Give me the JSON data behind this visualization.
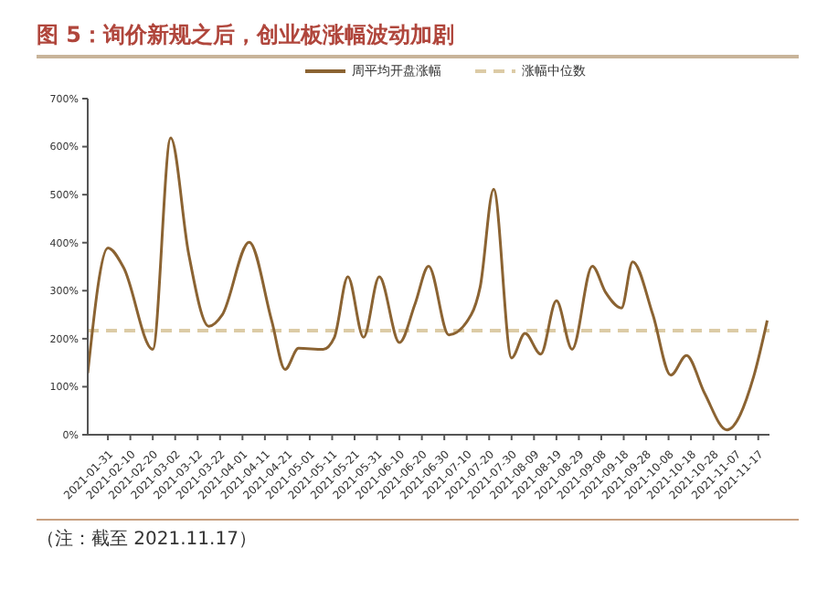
{
  "chart_data": {
    "type": "line",
    "title": "图 5：询价新规之后，创业板涨幅波动加剧",
    "annotations": [
      "（注：截至 2021.11.17）"
    ],
    "xlim": [
      "2021-01-22",
      "2021-11-22"
    ],
    "xticks": [
      "2021-01-31",
      "2021-02-10",
      "2021-02-20",
      "2021-03-02",
      "2021-03-12",
      "2021-03-22",
      "2021-04-01",
      "2021-04-11",
      "2021-04-21",
      "2021-05-01",
      "2021-05-11",
      "2021-05-21",
      "2021-05-31",
      "2021-06-10",
      "2021-06-20",
      "2021-06-30",
      "2021-07-10",
      "2021-07-20",
      "2021-07-30",
      "2021-08-09",
      "2021-08-19",
      "2021-08-29",
      "2021-09-08",
      "2021-09-18",
      "2021-09-28",
      "2021-10-08",
      "2021-10-18",
      "2021-10-28",
      "2021-11-07",
      "2021-11-17"
    ],
    "ylim": [
      0,
      700
    ],
    "yticks": [
      {
        "value": 0,
        "label": "0%"
      },
      {
        "value": 100,
        "label": "100%"
      },
      {
        "value": 200,
        "label": "200%"
      },
      {
        "value": 300,
        "label": "300%"
      },
      {
        "value": 400,
        "label": "400%"
      },
      {
        "value": 500,
        "label": "500%"
      },
      {
        "value": 600,
        "label": "600%"
      },
      {
        "value": 700,
        "label": "700%"
      }
    ],
    "x": [
      "2021-01-22",
      "2021-01-31",
      "2021-02-07",
      "2021-02-20",
      "2021-02-28",
      "2021-03-08",
      "2021-03-17",
      "2021-03-23",
      "2021-04-04",
      "2021-04-14",
      "2021-04-20",
      "2021-04-26",
      "2021-05-07",
      "2021-05-12",
      "2021-05-18",
      "2021-05-25",
      "2021-06-01",
      "2021-06-10",
      "2021-06-17",
      "2021-06-23",
      "2021-07-02",
      "2021-07-12",
      "2021-07-16",
      "2021-07-22",
      "2021-07-30",
      "2021-08-05",
      "2021-08-12",
      "2021-08-19",
      "2021-08-26",
      "2021-09-04",
      "2021-09-10",
      "2021-09-17",
      "2021-09-22",
      "2021-10-01",
      "2021-10-09",
      "2021-10-16",
      "2021-10-24",
      "2021-11-03",
      "2021-11-15",
      "2021-11-21"
    ],
    "series": [
      {
        "name": "周平均开盘涨幅",
        "color": "#8b6332",
        "values": [
          128,
          389,
          348,
          178,
          618,
          377,
          226,
          250,
          401,
          238,
          136,
          180,
          178,
          203,
          329,
          203,
          329,
          192,
          273,
          351,
          208,
          250,
          308,
          511,
          160,
          211,
          168,
          279,
          178,
          351,
          296,
          264,
          360,
          250,
          124,
          165,
          87,
          10,
          122,
          238
        ]
      }
    ],
    "ref_lines": [
      {
        "axis": "y",
        "value": 217,
        "label": "涨幅中位数",
        "color": "#dccba6",
        "line_style": "dashed"
      }
    ],
    "legend": "top",
    "marker": "none",
    "line_style": "solid"
  }
}
